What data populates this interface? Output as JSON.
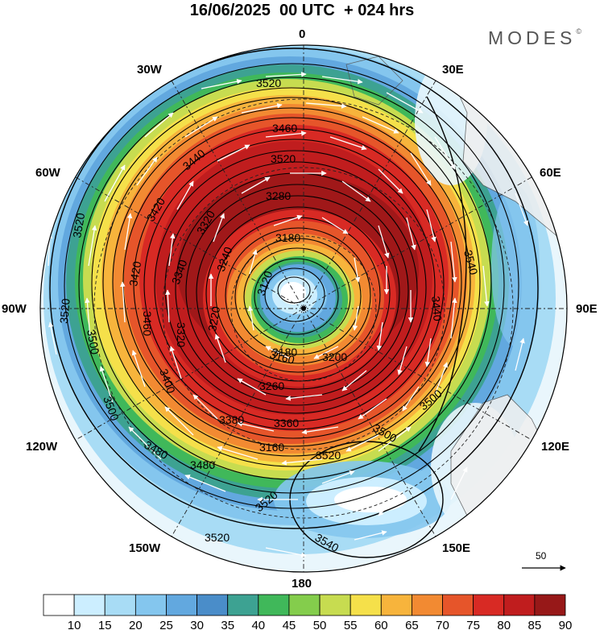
{
  "title": "16/06/2025  00 UTC  + 024 hrs",
  "brand": "MODES",
  "brand_mark": "©",
  "longitude_labels": {
    "n": "0",
    "s": "180",
    "w": "90W",
    "e": "90E",
    "w30": "30W",
    "e30": "30E",
    "w60": "60W",
    "e60": "60E",
    "w120": "120W",
    "e120": "120E",
    "w150": "150W",
    "e150": "150E"
  },
  "reference_vector": "50",
  "contour_labels": [
    "3520",
    "3460",
    "3440",
    "3520",
    "3280",
    "3420",
    "3320",
    "3180",
    "3240",
    "3340",
    "3520",
    "3420",
    "3540",
    "3120",
    "3440",
    "3520",
    "3160",
    "3220",
    "3320",
    "3460",
    "3180",
    "3200",
    "3500",
    "3400",
    "3260",
    "3500",
    "3380",
    "3360",
    "3500",
    "3480",
    "3160",
    "3520",
    "3500",
    "3480",
    "3520",
    "3520",
    "3540"
  ],
  "colorbar": {
    "ticks": [
      "10",
      "15",
      "20",
      "25",
      "30",
      "35",
      "40",
      "45",
      "50",
      "55",
      "60",
      "65",
      "70",
      "75",
      "80",
      "85",
      "90"
    ],
    "colors": [
      "#ffffff",
      "#cceeff",
      "#a8dcf5",
      "#84c6ee",
      "#62a8df",
      "#4a8dc9",
      "#3da292",
      "#40b85a",
      "#84cd4c",
      "#c7dc50",
      "#f5e04a",
      "#f7b43c",
      "#f28a32",
      "#e6552a",
      "#d82a24",
      "#c01d1e",
      "#971818"
    ]
  }
}
